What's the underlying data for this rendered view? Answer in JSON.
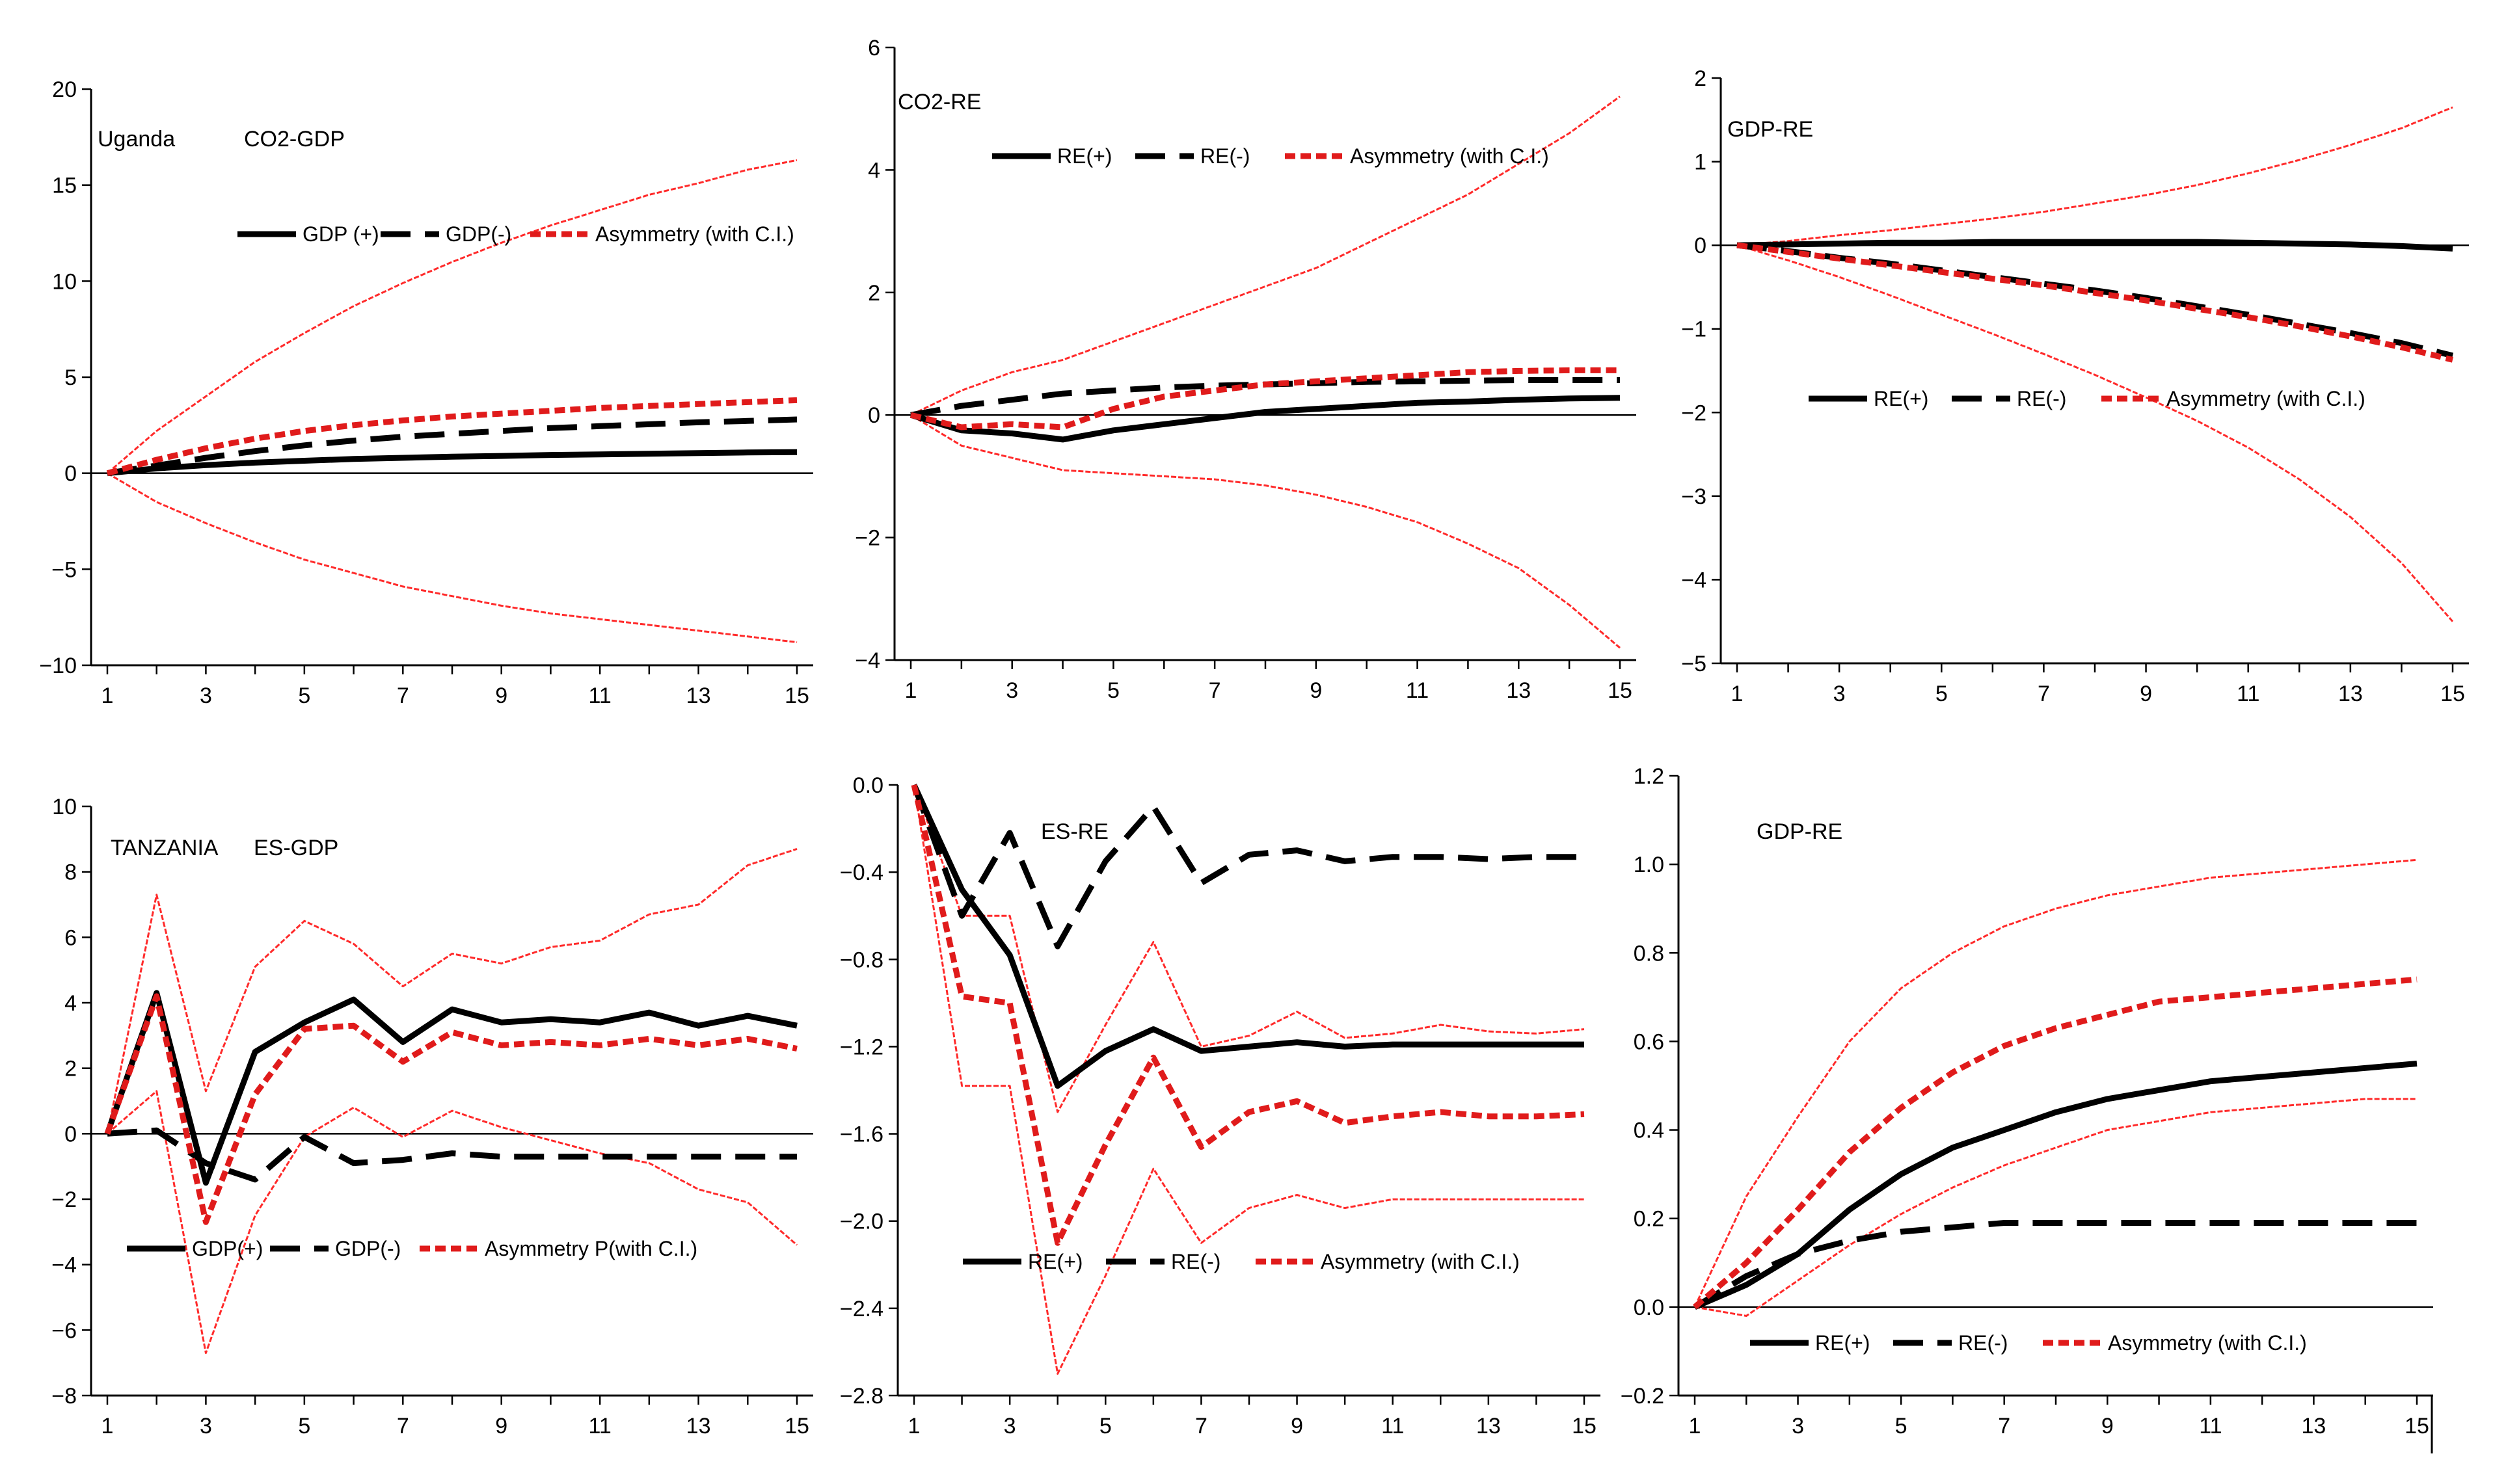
{
  "figure": {
    "description_free": true
  },
  "chart_data": [
    {
      "type": "line",
      "annotations": [
        "Uganda",
        "CO2-GDP"
      ],
      "x": [
        1,
        2,
        3,
        4,
        5,
        6,
        7,
        8,
        9,
        10,
        11,
        12,
        13,
        14,
        15
      ],
      "xticks": [
        1,
        3,
        5,
        7,
        9,
        11,
        13,
        15
      ],
      "ylim": [
        -10,
        20
      ],
      "yticks": [
        -10,
        -5,
        0,
        5,
        10,
        15,
        20
      ],
      "ytick_labels": [
        "−10",
        "−5",
        "0",
        "5",
        "10",
        "15",
        "20"
      ],
      "legend": [
        "GDP (+)",
        "GDP(-)",
        "Asymmetry (with C.I.)"
      ],
      "series": [
        {
          "name": "GDP (+)",
          "style": "solid",
          "values": [
            0,
            0.25,
            0.42,
            0.55,
            0.65,
            0.74,
            0.8,
            0.86,
            0.9,
            0.95,
            0.98,
            1.01,
            1.05,
            1.08,
            1.1
          ]
        },
        {
          "name": "GDP(-)",
          "style": "dashed",
          "values": [
            0,
            0.4,
            0.8,
            1.15,
            1.45,
            1.7,
            1.9,
            2.05,
            2.2,
            2.35,
            2.45,
            2.55,
            2.65,
            2.72,
            2.8
          ]
        },
        {
          "name": "Asymmetry (with C.I.)",
          "style": "asym",
          "values": [
            0,
            0.7,
            1.3,
            1.8,
            2.2,
            2.5,
            2.75,
            2.95,
            3.1,
            3.25,
            3.4,
            3.5,
            3.6,
            3.7,
            3.8
          ]
        },
        {
          "name": "Upper C.I.",
          "style": "ci",
          "values": [
            0,
            2.2,
            4.0,
            5.8,
            7.3,
            8.7,
            9.9,
            11.0,
            12.0,
            12.9,
            13.7,
            14.5,
            15.1,
            15.8,
            16.3
          ]
        },
        {
          "name": "Lower C.I.",
          "style": "ci",
          "values": [
            0,
            -1.5,
            -2.6,
            -3.6,
            -4.5,
            -5.2,
            -5.9,
            -6.4,
            -6.9,
            -7.3,
            -7.6,
            -7.9,
            -8.2,
            -8.5,
            -8.8
          ]
        }
      ]
    },
    {
      "type": "line",
      "annotations": [
        "CO2-RE"
      ],
      "x": [
        1,
        2,
        3,
        4,
        5,
        6,
        7,
        8,
        9,
        10,
        11,
        12,
        13,
        14,
        15
      ],
      "xticks": [
        1,
        3,
        5,
        7,
        9,
        11,
        13,
        15
      ],
      "ylim": [
        -4,
        6
      ],
      "yticks": [
        -4,
        -2,
        0,
        2,
        4,
        6
      ],
      "ytick_labels": [
        "−4",
        "−2",
        "0",
        "2",
        "4",
        "6"
      ],
      "legend": [
        "RE(+)",
        "RE(-)",
        "Asymmetry (with C.I.)"
      ],
      "series": [
        {
          "name": "RE(+)",
          "style": "solid",
          "values": [
            0,
            -0.25,
            -0.3,
            -0.4,
            -0.25,
            -0.15,
            -0.05,
            0.05,
            0.1,
            0.15,
            0.2,
            0.22,
            0.25,
            0.27,
            0.28
          ]
        },
        {
          "name": "RE(-)",
          "style": "dashed",
          "values": [
            0,
            0.15,
            0.25,
            0.35,
            0.4,
            0.45,
            0.48,
            0.5,
            0.52,
            0.54,
            0.55,
            0.56,
            0.57,
            0.57,
            0.57
          ]
        },
        {
          "name": "Asymmetry (with C.I.)",
          "style": "asym",
          "values": [
            0,
            -0.2,
            -0.15,
            -0.2,
            0.1,
            0.3,
            0.4,
            0.5,
            0.55,
            0.6,
            0.65,
            0.7,
            0.72,
            0.73,
            0.73
          ]
        },
        {
          "name": "Upper C.I.",
          "style": "ci",
          "values": [
            0,
            0.4,
            0.7,
            0.9,
            1.2,
            1.5,
            1.8,
            2.1,
            2.4,
            2.8,
            3.2,
            3.6,
            4.1,
            4.6,
            5.2
          ]
        },
        {
          "name": "Lower C.I.",
          "style": "ci",
          "values": [
            0,
            -0.5,
            -0.7,
            -0.9,
            -0.95,
            -1.0,
            -1.05,
            -1.15,
            -1.3,
            -1.5,
            -1.75,
            -2.1,
            -2.5,
            -3.1,
            -3.8
          ]
        }
      ]
    },
    {
      "type": "line",
      "annotations": [
        "GDP-RE"
      ],
      "x": [
        1,
        2,
        3,
        4,
        5,
        6,
        7,
        8,
        9,
        10,
        11,
        12,
        13,
        14,
        15
      ],
      "xticks": [
        1,
        3,
        5,
        7,
        9,
        11,
        13,
        15
      ],
      "ylim": [
        -5,
        2
      ],
      "yticks": [
        -5,
        -4,
        -3,
        -2,
        -1,
        0,
        1,
        2
      ],
      "ytick_labels": [
        "−5",
        "−4",
        "−3",
        "−2",
        "−1",
        "0",
        "1",
        "2"
      ],
      "legend": [
        "RE(+)",
        "RE(-)",
        "Asymmetry (with C.I.)"
      ],
      "series": [
        {
          "name": "RE(+)",
          "style": "solid",
          "values": [
            0,
            0.01,
            0.02,
            0.03,
            0.03,
            0.04,
            0.04,
            0.04,
            0.04,
            0.04,
            0.03,
            0.02,
            0.01,
            -0.01,
            -0.04
          ]
        },
        {
          "name": "RE(-)",
          "style": "dashed",
          "values": [
            0,
            -0.07,
            -0.15,
            -0.22,
            -0.3,
            -0.38,
            -0.46,
            -0.54,
            -0.63,
            -0.73,
            -0.83,
            -0.94,
            -1.05,
            -1.17,
            -1.32
          ]
        },
        {
          "name": "Asymmetry (with C.I.)",
          "style": "asym",
          "values": [
            0,
            -0.08,
            -0.16,
            -0.24,
            -0.32,
            -0.4,
            -0.48,
            -0.57,
            -0.66,
            -0.76,
            -0.86,
            -0.97,
            -1.09,
            -1.22,
            -1.37
          ]
        },
        {
          "name": "Upper C.I.",
          "style": "ci",
          "values": [
            0,
            0.05,
            0.12,
            0.18,
            0.25,
            0.32,
            0.4,
            0.5,
            0.6,
            0.72,
            0.86,
            1.02,
            1.2,
            1.4,
            1.65
          ]
        },
        {
          "name": "Lower C.I.",
          "style": "ci",
          "values": [
            0,
            -0.18,
            -0.38,
            -0.6,
            -0.83,
            -1.06,
            -1.3,
            -1.55,
            -1.82,
            -2.1,
            -2.42,
            -2.8,
            -3.25,
            -3.8,
            -4.5
          ]
        }
      ]
    },
    {
      "type": "line",
      "annotations": [
        "TANZANIA",
        "ES-GDP"
      ],
      "x": [
        1,
        2,
        3,
        4,
        5,
        6,
        7,
        8,
        9,
        10,
        11,
        12,
        13,
        14,
        15
      ],
      "xticks": [
        1,
        3,
        5,
        7,
        9,
        11,
        13,
        15
      ],
      "ylim": [
        -8,
        10
      ],
      "yticks": [
        -8,
        -6,
        -4,
        -2,
        0,
        2,
        4,
        6,
        8,
        10
      ],
      "ytick_labels": [
        "−8",
        "−6",
        "−4",
        "−2",
        "0",
        "2",
        "4",
        "6",
        "8",
        "10"
      ],
      "legend": [
        "GDP(+)",
        "GDP(-)",
        "Asymmetry P(with C.I.)"
      ],
      "series": [
        {
          "name": "GDP(+)",
          "style": "solid",
          "values": [
            0,
            4.3,
            -1.5,
            2.5,
            3.4,
            4.1,
            2.8,
            3.8,
            3.4,
            3.5,
            3.4,
            3.7,
            3.3,
            3.6,
            3.3
          ]
        },
        {
          "name": "GDP(-)",
          "style": "dashed",
          "values": [
            0,
            0.1,
            -0.9,
            -1.4,
            -0.1,
            -0.9,
            -0.8,
            -0.6,
            -0.7,
            -0.7,
            -0.7,
            -0.7,
            -0.7,
            -0.7,
            -0.7
          ]
        },
        {
          "name": "Asymmetry P(with C.I.)",
          "style": "asym",
          "values": [
            0,
            4.2,
            -2.7,
            1.2,
            3.2,
            3.3,
            2.2,
            3.1,
            2.7,
            2.8,
            2.7,
            2.9,
            2.7,
            2.9,
            2.6
          ]
        },
        {
          "name": "Upper C.I.",
          "style": "ci",
          "values": [
            0,
            7.3,
            1.3,
            5.1,
            6.5,
            5.8,
            4.5,
            5.5,
            5.2,
            5.7,
            5.9,
            6.7,
            7.0,
            8.2,
            8.7
          ]
        },
        {
          "name": "Lower C.I.",
          "style": "ci",
          "values": [
            0,
            1.3,
            -6.7,
            -2.5,
            -0.1,
            0.8,
            -0.1,
            0.7,
            0.2,
            -0.2,
            -0.6,
            -0.9,
            -1.7,
            -2.1,
            -3.4
          ]
        }
      ]
    },
    {
      "type": "line",
      "annotations": [
        "ES-RE"
      ],
      "x": [
        1,
        2,
        3,
        4,
        5,
        6,
        7,
        8,
        9,
        10,
        11,
        12,
        13,
        14,
        15
      ],
      "xticks": [
        1,
        3,
        5,
        7,
        9,
        11,
        13,
        15
      ],
      "ylim": [
        -2.8,
        0.0
      ],
      "yticks": [
        -2.8,
        -2.4,
        -2.0,
        -1.6,
        -1.2,
        -0.8,
        -0.4,
        0.0
      ],
      "ytick_labels": [
        "−2.8",
        "−2.4",
        "−2.0",
        "−1.6",
        "−1.2",
        "−0.8",
        "−0.4",
        "0.0"
      ],
      "legend": [
        "RE(+)",
        "RE(-)",
        "Asymmetry (with C.I.)"
      ],
      "series": [
        {
          "name": "RE(+)",
          "style": "solid",
          "values": [
            0,
            -0.48,
            -0.78,
            -1.38,
            -1.22,
            -1.12,
            -1.22,
            -1.2,
            -1.18,
            -1.2,
            -1.19,
            -1.19,
            -1.19,
            -1.19,
            -1.19
          ]
        },
        {
          "name": "RE(-)",
          "style": "dashed",
          "values": [
            0,
            -0.6,
            -0.22,
            -0.74,
            -0.35,
            -0.1,
            -0.45,
            -0.32,
            -0.3,
            -0.35,
            -0.33,
            -0.33,
            -0.34,
            -0.33,
            -0.33
          ]
        },
        {
          "name": "Asymmetry (with C.I.)",
          "style": "asym",
          "values": [
            0,
            -0.97,
            -1.0,
            -2.1,
            -1.65,
            -1.25,
            -1.66,
            -1.5,
            -1.45,
            -1.55,
            -1.52,
            -1.5,
            -1.52,
            -1.52,
            -1.51
          ]
        },
        {
          "name": "Upper C.I.",
          "style": "ci",
          "values": [
            0,
            -0.6,
            -0.6,
            -1.5,
            -1.1,
            -0.72,
            -1.2,
            -1.15,
            -1.04,
            -1.16,
            -1.14,
            -1.1,
            -1.13,
            -1.14,
            -1.12
          ]
        },
        {
          "name": "Lower C.I.",
          "style": "ci",
          "values": [
            0,
            -1.38,
            -1.38,
            -2.7,
            -2.25,
            -1.76,
            -2.1,
            -1.94,
            -1.88,
            -1.94,
            -1.9,
            -1.9,
            -1.9,
            -1.9,
            -1.9
          ]
        }
      ]
    },
    {
      "type": "line",
      "annotations": [
        "GDP-RE"
      ],
      "x": [
        1,
        2,
        3,
        4,
        5,
        6,
        7,
        8,
        9,
        10,
        11,
        12,
        13,
        14,
        15
      ],
      "xticks": [
        1,
        3,
        5,
        7,
        9,
        11,
        13,
        15
      ],
      "ylim": [
        -0.2,
        1.2
      ],
      "yticks": [
        -0.2,
        0.0,
        0.2,
        0.4,
        0.6,
        0.8,
        1.0,
        1.2
      ],
      "ytick_labels": [
        "−0.2",
        "0.0",
        "0.2",
        "0.4",
        "0.6",
        "0.8",
        "1.0",
        "1.2"
      ],
      "legend": [
        "RE(+)",
        "RE(-)",
        "Asymmetry (with C.I.)"
      ],
      "series": [
        {
          "name": "RE(+)",
          "style": "solid",
          "values": [
            0,
            0.05,
            0.12,
            0.22,
            0.3,
            0.36,
            0.4,
            0.44,
            0.47,
            0.49,
            0.51,
            0.52,
            0.53,
            0.54,
            0.55
          ]
        },
        {
          "name": "RE(-)",
          "style": "dashed",
          "values": [
            0,
            0.07,
            0.12,
            0.15,
            0.17,
            0.18,
            0.19,
            0.19,
            0.19,
            0.19,
            0.19,
            0.19,
            0.19,
            0.19,
            0.19
          ]
        },
        {
          "name": "Asymmetry (with C.I.)",
          "style": "asym",
          "values": [
            0,
            0.1,
            0.22,
            0.35,
            0.45,
            0.53,
            0.59,
            0.63,
            0.66,
            0.69,
            0.7,
            0.71,
            0.72,
            0.73,
            0.74
          ]
        },
        {
          "name": "Upper C.I.",
          "style": "ci",
          "values": [
            0,
            0.25,
            0.43,
            0.6,
            0.72,
            0.8,
            0.86,
            0.9,
            0.93,
            0.95,
            0.97,
            0.98,
            0.99,
            1.0,
            1.01
          ]
        },
        {
          "name": "Lower C.I.",
          "style": "ci",
          "values": [
            0,
            -0.02,
            0.06,
            0.14,
            0.21,
            0.27,
            0.32,
            0.36,
            0.4,
            0.42,
            0.44,
            0.45,
            0.46,
            0.47,
            0.47
          ]
        }
      ]
    }
  ]
}
